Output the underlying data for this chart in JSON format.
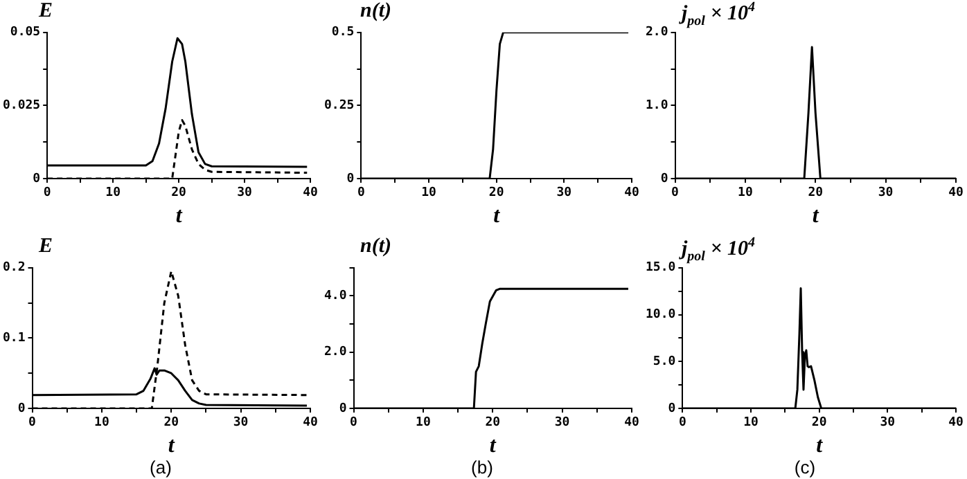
{
  "chart_data": [
    {
      "type": "line",
      "ylabel": "E",
      "xlabel": "t",
      "xlim": [
        0,
        40
      ],
      "xticks": [
        0,
        {
          "value": 5,
          "label": null
        },
        10,
        {
          "value": 15,
          "label": null
        },
        20,
        {
          "value": 25,
          "label": null
        },
        30,
        {
          "value": 35,
          "label": null
        },
        40
      ],
      "ylim": [
        0,
        0.05
      ],
      "yticks": [
        0,
        {
          "value": 0.0125,
          "label": null
        },
        0.025,
        {
          "value": 0.0375,
          "label": null
        },
        0.05
      ],
      "grid": false,
      "marker": "none",
      "series": [
        {
          "color": "#000000",
          "line_style": "solid",
          "x": [
            0,
            15,
            16,
            17,
            18,
            19,
            19.8,
            20.5,
            21,
            22,
            23,
            24,
            25,
            39.5
          ],
          "values": [
            0.0045,
            0.0045,
            0.006,
            0.012,
            0.024,
            0.04,
            0.048,
            0.046,
            0.04,
            0.022,
            0.009,
            0.005,
            0.0042,
            0.004
          ]
        },
        {
          "color": "#000000",
          "line_style": "dashed",
          "x": [
            0,
            19,
            19.5,
            20,
            20.5,
            21,
            22,
            23,
            24,
            25,
            39.5
          ],
          "values": [
            0,
            0,
            0.008,
            0.016,
            0.02,
            0.018,
            0.01,
            0.005,
            0.003,
            0.0023,
            0.002
          ]
        }
      ]
    },
    {
      "type": "line",
      "ylabel": "n(t)",
      "xlabel": "t",
      "xlim": [
        0,
        40
      ],
      "xticks": [
        0,
        {
          "value": 5,
          "label": null
        },
        10,
        {
          "value": 15,
          "label": null
        },
        20,
        {
          "value": 25,
          "label": null
        },
        30,
        {
          "value": 35,
          "label": null
        },
        40
      ],
      "ylim": [
        0,
        0.5
      ],
      "yticks": [
        0,
        {
          "value": 0.125,
          "label": null
        },
        0.25,
        {
          "value": 0.375,
          "label": null
        },
        0.5
      ],
      "grid": false,
      "marker": "none",
      "series": [
        {
          "color": "#000000",
          "line_style": "solid",
          "x": [
            0,
            19,
            19.5,
            20,
            20.5,
            21,
            39.5
          ],
          "values": [
            0,
            0,
            0.1,
            0.3,
            0.46,
            0.5,
            0.5
          ]
        }
      ]
    },
    {
      "type": "line",
      "ylabel": "j$_{pol}$ × 10$^{4}$",
      "xlabel": "t",
      "xlim": [
        0,
        40
      ],
      "xticks": [
        0,
        {
          "value": 5,
          "label": null
        },
        10,
        {
          "value": 15,
          "label": null
        },
        20,
        {
          "value": 25,
          "label": null
        },
        30,
        {
          "value": 35,
          "label": null
        },
        40
      ],
      "ylim": [
        0,
        2
      ],
      "yticks": [
        0,
        {
          "value": 0.5,
          "label": null
        },
        {
          "value": 1,
          "label": "1.0"
        },
        {
          "value": 1.5,
          "label": null
        },
        {
          "value": 2,
          "label": "2.0"
        }
      ],
      "grid": false,
      "marker": "none",
      "series": [
        {
          "color": "#000000",
          "line_style": "solid",
          "x": [
            0,
            18.4,
            19,
            19.5,
            20,
            20.7,
            40
          ],
          "values": [
            0,
            0,
            0.9,
            1.8,
            0.9,
            0,
            0
          ]
        }
      ]
    },
    {
      "type": "line",
      "ylabel": "E",
      "xlabel": "t",
      "annotations": [
        "(a)"
      ],
      "xlim": [
        0,
        40
      ],
      "xticks": [
        0,
        {
          "value": 5,
          "label": null
        },
        10,
        {
          "value": 15,
          "label": null
        },
        20,
        {
          "value": 25,
          "label": null
        },
        30,
        {
          "value": 35,
          "label": null
        },
        40
      ],
      "ylim": [
        0,
        0.2
      ],
      "yticks": [
        0,
        {
          "value": 0.05,
          "label": null
        },
        0.1,
        {
          "value": 0.15,
          "label": null
        },
        0.2
      ],
      "grid": false,
      "marker": "none",
      "series": [
        {
          "color": "#000000",
          "line_style": "solid",
          "x": [
            0,
            15,
            16,
            17,
            17.6,
            17.9,
            18.3,
            19,
            20,
            21,
            22,
            23,
            24,
            25,
            39.5
          ],
          "values": [
            0.019,
            0.02,
            0.025,
            0.042,
            0.057,
            0.048,
            0.054,
            0.054,
            0.05,
            0.04,
            0.025,
            0.012,
            0.007,
            0.005,
            0.004
          ]
        },
        {
          "color": "#000000",
          "line_style": "dashed",
          "x": [
            0,
            17.2,
            18,
            19,
            20,
            21,
            22,
            23,
            24,
            25,
            39.5
          ],
          "values": [
            0,
            0,
            0.06,
            0.15,
            0.195,
            0.16,
            0.09,
            0.04,
            0.025,
            0.02,
            0.019
          ]
        }
      ]
    },
    {
      "type": "line",
      "ylabel": "n(t)",
      "xlabel": "t",
      "annotations": [
        "(b)"
      ],
      "xlim": [
        0,
        40
      ],
      "xticks": [
        0,
        {
          "value": 5,
          "label": null
        },
        10,
        {
          "value": 15,
          "label": null
        },
        20,
        {
          "value": 25,
          "label": null
        },
        30,
        {
          "value": 35,
          "label": null
        },
        40
      ],
      "ylim": [
        0,
        5
      ],
      "yticks": [
        0,
        {
          "value": 1,
          "label": null
        },
        {
          "value": 2,
          "label": "2.0"
        },
        {
          "value": 3,
          "label": null
        },
        {
          "value": 4,
          "label": "4.0"
        },
        {
          "value": 5,
          "label": null
        }
      ],
      "grid": false,
      "marker": "none",
      "series": [
        {
          "color": "#000000",
          "line_style": "solid",
          "x": [
            0,
            17.3,
            17.6,
            18,
            18.5,
            19,
            19.6,
            20.5,
            21,
            39.5
          ],
          "values": [
            0,
            0,
            1.3,
            1.5,
            2.3,
            3,
            3.8,
            4.2,
            4.25,
            4.25
          ]
        }
      ]
    },
    {
      "type": "line",
      "ylabel": "j$_{pol}$ × 10$^{4}$",
      "xlabel": "t",
      "annotations": [
        "(c)"
      ],
      "xlim": [
        0,
        40
      ],
      "xticks": [
        0,
        {
          "value": 5,
          "label": null
        },
        10,
        {
          "value": 15,
          "label": null
        },
        20,
        {
          "value": 25,
          "label": null
        },
        30,
        {
          "value": 35,
          "label": null
        },
        40
      ],
      "ylim": [
        0,
        15
      ],
      "yticks": [
        0,
        {
          "value": 2.5,
          "label": null
        },
        {
          "value": 5,
          "label": "5.0"
        },
        {
          "value": 7.5,
          "label": null
        },
        {
          "value": 10,
          "label": "10.0"
        },
        {
          "value": 12.5,
          "label": null
        },
        {
          "value": 15,
          "label": "15.0"
        }
      ],
      "grid": false,
      "marker": "none",
      "series": [
        {
          "color": "#000000",
          "line_style": "solid",
          "x": [
            0,
            16.5,
            16.8,
            17.1,
            17.3,
            17.5,
            17.7,
            17.9,
            18.1,
            18.3,
            18.5,
            18.8,
            19.3,
            19.8,
            20.3,
            40
          ],
          "values": [
            0,
            0,
            2,
            8,
            12.8,
            6,
            2,
            5.5,
            6.2,
            4.5,
            4.4,
            4.5,
            3,
            1.2,
            0,
            0
          ]
        }
      ]
    }
  ]
}
